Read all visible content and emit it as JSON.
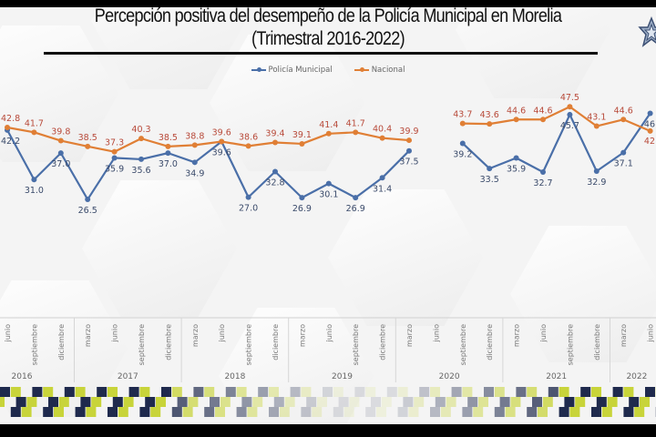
{
  "header": {
    "title_line1": "Percepción positiva del desempeño de la Policía Municipal en Morelia",
    "title_line2": "(Trimestral 2016-2022)",
    "logo_icon": "police-star-badge-icon"
  },
  "colors": {
    "policia": "#4a6fa8",
    "nacional": "#e07f35",
    "nacional_label": "#b84a3a",
    "policia_label": "#3a4a6a",
    "checker_navy": "#1f2a4d",
    "checker_lime": "#c8d43a"
  },
  "chart_data": {
    "type": "line",
    "title": "Percepción positiva del desempeño de la Policía Municipal en Morelia (Trimestral 2016-2022)",
    "xlabel": "",
    "ylabel": "",
    "ylim": [
      20,
      50
    ],
    "grid": false,
    "legend_position": "top-center",
    "legend": [
      "Policía Municipal",
      "Nacional"
    ],
    "x": [
      {
        "month": "junio",
        "year": "2016"
      },
      {
        "month": "septiembre",
        "year": "2016"
      },
      {
        "month": "diciembre",
        "year": "2016"
      },
      {
        "month": "marzo",
        "year": "2017"
      },
      {
        "month": "junio",
        "year": "2017"
      },
      {
        "month": "septiembre",
        "year": "2017"
      },
      {
        "month": "diciembre",
        "year": "2017"
      },
      {
        "month": "marzo",
        "year": "2018"
      },
      {
        "month": "junio",
        "year": "2018"
      },
      {
        "month": "septiembre",
        "year": "2018"
      },
      {
        "month": "diciembre",
        "year": "2018"
      },
      {
        "month": "marzo",
        "year": "2019"
      },
      {
        "month": "junio",
        "year": "2019"
      },
      {
        "month": "septiembre",
        "year": "2019"
      },
      {
        "month": "diciembre",
        "year": "2019"
      },
      {
        "month": "marzo",
        "year": "2020"
      },
      {
        "month": "junio",
        "year": "2020"
      },
      {
        "month": "septiembre",
        "year": "2020"
      },
      {
        "month": "diciembre",
        "year": "2020"
      },
      {
        "month": "marzo",
        "year": "2021"
      },
      {
        "month": "junio",
        "year": "2021"
      },
      {
        "month": "septiembre",
        "year": "2021"
      },
      {
        "month": "diciembre",
        "year": "2021"
      },
      {
        "month": "marzo",
        "year": "2022"
      },
      {
        "month": "junio",
        "year": "2022"
      }
    ],
    "years": [
      "2016",
      "2017",
      "2018",
      "2019",
      "2020",
      "2021",
      "2022"
    ],
    "series": [
      {
        "name": "Policía Municipal",
        "values": [
          42.2,
          31.0,
          37.0,
          26.5,
          35.9,
          35.6,
          37.0,
          34.9,
          39.6,
          27.0,
          32.8,
          26.9,
          30.1,
          26.9,
          31.4,
          37.5,
          null,
          39.2,
          33.5,
          35.9,
          32.7,
          45.7,
          32.9,
          37.1,
          46
        ],
        "labels": [
          "42.2",
          "31.0",
          "37.0",
          "26.5",
          "35.9",
          "35.6",
          "37.0",
          "34.9",
          "39.6",
          "27.0",
          "32.8",
          "26.9",
          "30.1",
          "26.9",
          "31.4",
          "37.5",
          "",
          "39.2",
          "33.5",
          "35.9",
          "32.7",
          "45.7",
          "32.9",
          "37.1",
          "46"
        ]
      },
      {
        "name": "Nacional",
        "values": [
          42.8,
          41.7,
          39.8,
          38.5,
          37.3,
          40.3,
          38.5,
          38.8,
          39.6,
          38.6,
          39.4,
          39.1,
          41.4,
          41.7,
          40.4,
          39.9,
          null,
          43.7,
          43.6,
          44.6,
          44.6,
          47.5,
          43.1,
          44.6,
          42
        ],
        "labels": [
          "42.8",
          "41.7",
          "39.8",
          "38.5",
          "37.3",
          "40.3",
          "38.5",
          "38.8",
          "39.6",
          "38.6",
          "39.4",
          "39.1",
          "41.4",
          "41.7",
          "40.4",
          "39.9",
          "",
          "43.7",
          "43.6",
          "44.6",
          "44.6",
          "47.5",
          "43.1",
          "44.6",
          "42"
        ]
      }
    ]
  }
}
